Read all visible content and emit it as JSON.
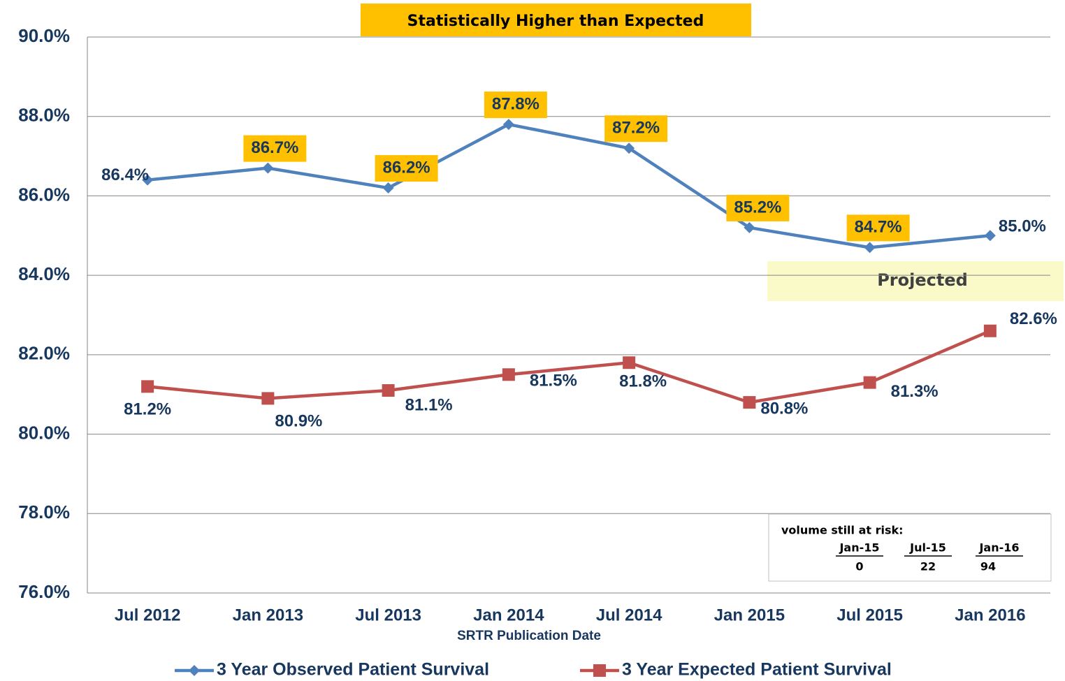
{
  "chart_data": {
    "type": "line",
    "title": "Statistically Higher than Expected",
    "x_label": "SRTR Publication Date",
    "categories": [
      "Jul 2012",
      "Jan 2013",
      "Jul 2013",
      "Jan 2014",
      "Jul 2014",
      "Jan 2015",
      "Jul 2015",
      "Jan 2016"
    ],
    "series": [
      {
        "name": "3 Year Observed Patient Survival",
        "color": "#4f81bd",
        "marker": "diamond",
        "values": [
          86.4,
          86.7,
          86.2,
          87.8,
          87.2,
          85.2,
          84.7,
          85.0
        ],
        "value_labels": [
          "86.4%",
          "86.7%",
          "86.2%",
          "87.8%",
          "87.2%",
          "85.2%",
          "84.7%",
          "85.0%"
        ],
        "label_boxes": [
          false,
          true,
          true,
          true,
          true,
          true,
          true,
          false
        ]
      },
      {
        "name": "3 Year Expected Patient Survival",
        "color": "#c0504d",
        "marker": "square",
        "values": [
          81.2,
          80.9,
          81.1,
          81.5,
          81.8,
          80.8,
          81.3,
          82.6
        ],
        "value_labels": [
          "81.2%",
          "80.9%",
          "81.1%",
          "81.5%",
          "81.8%",
          "80.8%",
          "81.3%",
          "82.6%"
        ]
      }
    ],
    "ylim": [
      76,
      90
    ],
    "yticks": [
      {
        "value": 76,
        "label": "76.0%"
      },
      {
        "value": 78,
        "label": "78.0%"
      },
      {
        "value": 80,
        "label": "80.0%"
      },
      {
        "value": 82,
        "label": "82.0%"
      },
      {
        "value": 84,
        "label": "84.0%"
      },
      {
        "value": 86,
        "label": "86.0%"
      },
      {
        "value": 88,
        "label": "88.0%"
      },
      {
        "value": 90,
        "label": "90.0%"
      }
    ],
    "grid": true,
    "label_box_color": "#ffc000",
    "projected_label": "Projected",
    "volume_table": {
      "title": "volume still at risk:",
      "columns": [
        "Jan-15",
        "Jul-15",
        "Jan-16"
      ],
      "values": [
        0,
        22,
        94
      ]
    }
  }
}
